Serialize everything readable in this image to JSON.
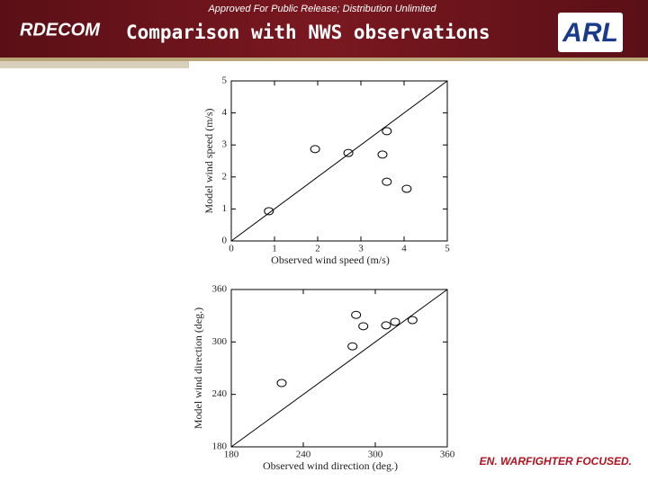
{
  "header": {
    "notice": "Approved For Public Release; Distribution Unlimited",
    "left_logo": "RDECOM",
    "title": "Comparison with NWS observations",
    "right_logo": "ARL",
    "footer": "EN. WARFIGHTER FOCUSED."
  },
  "chart_data": [
    {
      "type": "scatter",
      "x_label": "Observed wind speed (m/s)",
      "y_label": "Model wind speed (m/s)",
      "x": [
        0.87,
        1.94,
        2.71,
        3.5,
        3.6,
        3.6,
        4.06
      ],
      "y": [
        0.93,
        2.87,
        2.75,
        2.7,
        3.43,
        1.85,
        1.63
      ],
      "color": "#000000",
      "xlim": [
        0,
        5
      ],
      "ylim": [
        0,
        5
      ],
      "xticks": [
        0,
        1,
        2,
        3,
        4,
        5
      ],
      "yticks": [
        0,
        1,
        2,
        3,
        4,
        5
      ]
    },
    {
      "type": "scatter",
      "x_label": "Observed wind direction (deg.)",
      "y_label": "Model wind direction (deg.)",
      "x": [
        222,
        281,
        284,
        290,
        309,
        316.5,
        331
      ],
      "y": [
        253,
        295,
        331,
        318,
        319,
        323,
        325
      ],
      "color": "#000000",
      "xlim": [
        180,
        360
      ],
      "ylim": [
        180,
        360
      ],
      "xticks": [
        180,
        240,
        300,
        360
      ],
      "yticks": [
        180,
        240,
        300,
        360
      ]
    }
  ]
}
